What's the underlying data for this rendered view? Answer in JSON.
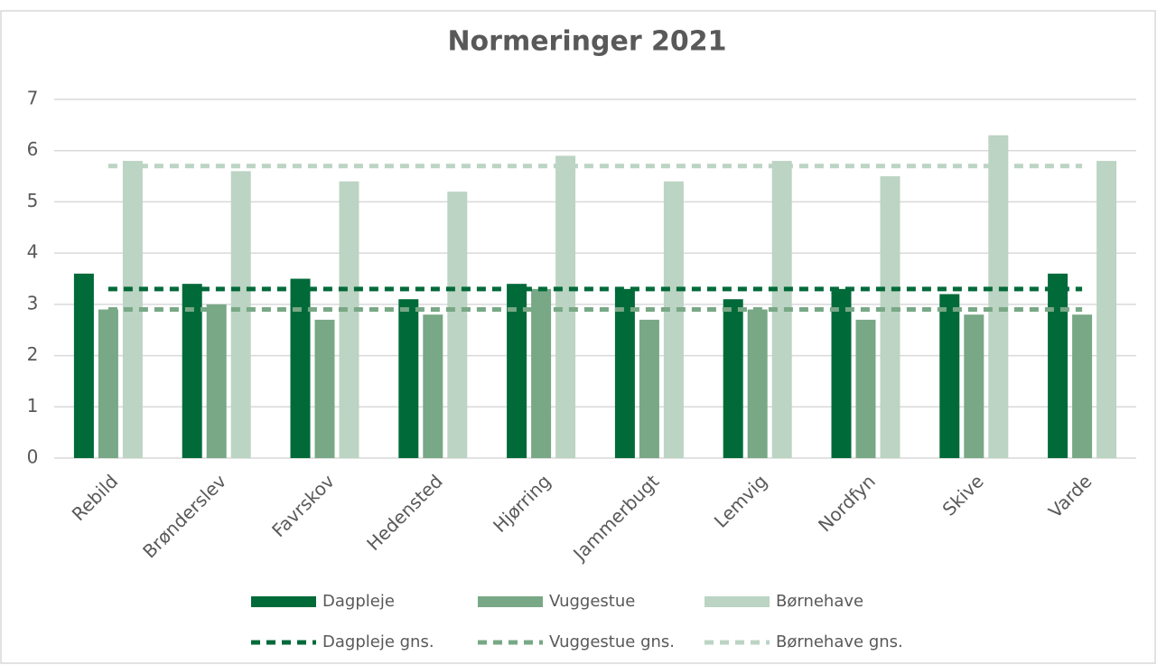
{
  "chart_data": {
    "type": "bar",
    "title": "Normeringer 2021",
    "categories": [
      "Rebild",
      "Brønderslev",
      "Favrskov",
      "Hedensted",
      "Hjørring",
      "Jammerbugt",
      "Lemvig",
      "Nordfyn",
      "Skive",
      "Varde"
    ],
    "series": [
      {
        "name": "Dagpleje",
        "type": "bar",
        "color": "#006a39",
        "values": [
          3.6,
          3.4,
          3.5,
          3.1,
          3.4,
          3.3,
          3.1,
          3.3,
          3.2,
          3.6
        ]
      },
      {
        "name": "Vuggestue",
        "type": "bar",
        "color": "#78a886",
        "values": [
          2.9,
          3.0,
          2.7,
          2.8,
          3.3,
          2.7,
          2.9,
          2.7,
          2.8,
          2.8
        ]
      },
      {
        "name": "Børnehave",
        "type": "bar",
        "color": "#bcd4c3",
        "values": [
          5.8,
          5.6,
          5.4,
          5.2,
          5.9,
          5.4,
          5.8,
          5.5,
          6.3,
          5.8
        ]
      },
      {
        "name": "Dagpleje gns.",
        "type": "line",
        "color": "#006a39",
        "values": [
          3.3,
          3.3,
          3.3,
          3.3,
          3.3,
          3.3,
          3.3,
          3.3,
          3.3,
          3.3
        ]
      },
      {
        "name": "Vuggestue gns.",
        "type": "line",
        "color": "#78a886",
        "values": [
          2.9,
          2.9,
          2.9,
          2.9,
          2.9,
          2.9,
          2.9,
          2.9,
          2.9,
          2.9
        ]
      },
      {
        "name": "Børnehave gns.",
        "type": "line",
        "color": "#bcd4c3",
        "values": [
          5.7,
          5.7,
          5.7,
          5.7,
          5.7,
          5.7,
          5.7,
          5.7,
          5.7,
          5.7
        ]
      }
    ],
    "ylim": [
      0,
      7
    ],
    "yticks": [
      0,
      1,
      2,
      3,
      4,
      5,
      6,
      7
    ],
    "grid": true,
    "legend": "bottom"
  }
}
